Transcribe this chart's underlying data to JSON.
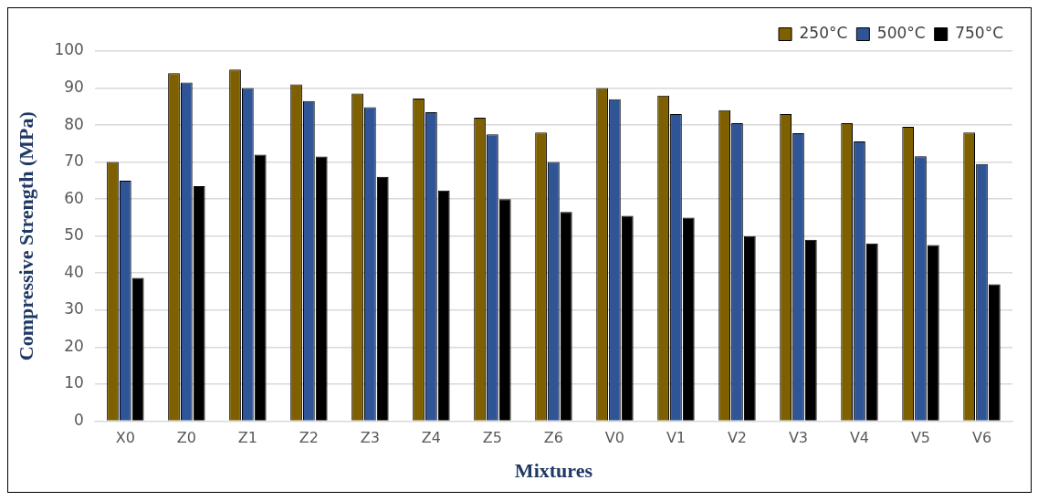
{
  "chart_data": {
    "type": "bar",
    "xlabel": "Mixtures",
    "ylabel": "Compressive Strength (MPa)",
    "categories": [
      "X0",
      "Z0",
      "Z1",
      "Z2",
      "Z3",
      "Z4",
      "Z5",
      "Z6",
      "V0",
      "V1",
      "V2",
      "V3",
      "V4",
      "V5",
      "V6"
    ],
    "series": [
      {
        "name": "250°C",
        "color": "#7f6000",
        "values": [
          70,
          94,
          95,
          91,
          88.5,
          87.2,
          82,
          78,
          90,
          88,
          84,
          83,
          80.5,
          79.5,
          78
        ]
      },
      {
        "name": "500°C",
        "color": "#2f5597",
        "values": [
          65,
          91.5,
          90,
          86.5,
          84.8,
          83.5,
          77.5,
          70,
          87,
          83,
          80.5,
          77.8,
          75.6,
          71.6,
          69.5
        ]
      },
      {
        "name": "750°C",
        "color": "#000000",
        "values": [
          38.7,
          63.5,
          72,
          71.5,
          66,
          62.3,
          60,
          56.5,
          55.5,
          55,
          50,
          49,
          48,
          47.6,
          37
        ]
      }
    ],
    "ylim": [
      0,
      100
    ],
    "yticks": [
      0,
      10,
      20,
      30,
      40,
      50,
      60,
      70,
      80,
      90,
      100
    ],
    "grid": "y",
    "legend": "top right"
  }
}
